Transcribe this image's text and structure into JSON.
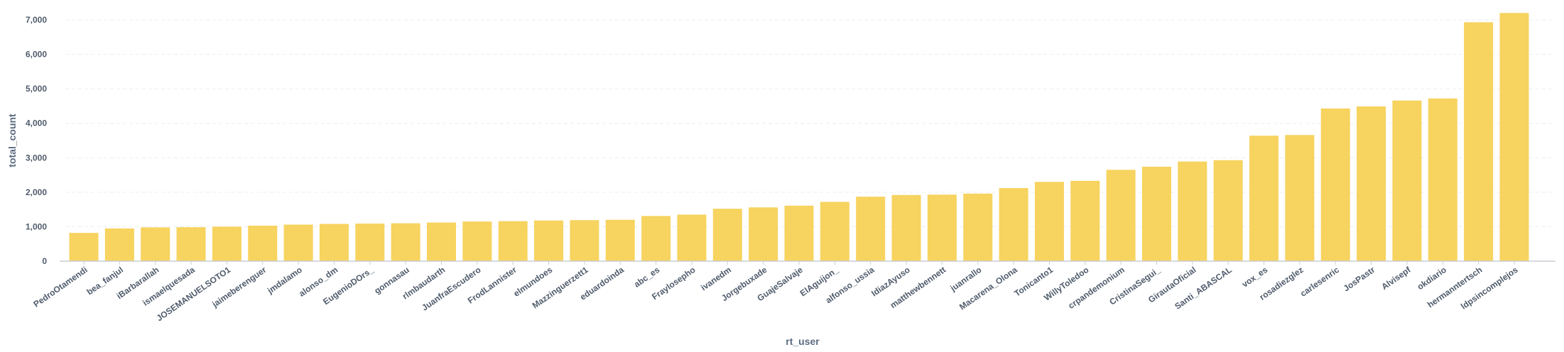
{
  "chart_data": {
    "type": "bar",
    "xlabel": "rt_user",
    "ylabel": "total_count",
    "ylim": [
      0,
      7000
    ],
    "y_ticks": [
      "0",
      "1,000",
      "2,000",
      "3,000",
      "4,000",
      "5,000",
      "6,000",
      "7,000"
    ],
    "y_tick_values": [
      0,
      1000,
      2000,
      3000,
      4000,
      5000,
      6000,
      7000
    ],
    "grid": true,
    "bar_color": "#f7d35f",
    "axis_color": "#c8ced6",
    "grid_color": "#e9edf1",
    "categories": [
      "PedroOtamendi",
      "bea_fanjul",
      "iBarbarallah",
      "ismaelquesada",
      "JOSEMANUELSOTO1",
      "jaimeberenguer",
      "jmdalamo",
      "alonso_dm",
      "EugenioDOrs_",
      "gonnasau",
      "rlmbaudarth",
      "JuanfraEscudero",
      "FrodLannister",
      "elmundoes",
      "Mazzinguerzett1",
      "eduardoinda",
      "abc_es",
      "Fraylosepho",
      "ivanedm",
      "Jorgebuxade",
      "GuajeSalvaje",
      "ElAguijon_",
      "alfonso_ussia",
      "IdiazAyuso",
      "matthewbennett",
      "juanrallo",
      "Macarena_Olona",
      "Tonicanto1",
      "WillyToledoo",
      "crpandemonium",
      "CristinaSegui_",
      "GirautaOficial",
      "Santi_ABASCAL",
      "vox_es",
      "rosadiezglez",
      "carlesenric",
      "JosPastr",
      "Alvisepf",
      "okdiario",
      "hermanntertsch",
      "ldpsincomplejos"
    ],
    "values": [
      820,
      950,
      980,
      985,
      1000,
      1030,
      1060,
      1080,
      1090,
      1100,
      1120,
      1150,
      1160,
      1180,
      1190,
      1200,
      1310,
      1350,
      1520,
      1560,
      1610,
      1720,
      1870,
      1920,
      1930,
      1960,
      2120,
      2300,
      2330,
      2650,
      2740,
      2890,
      2930,
      3640,
      3660,
      4430,
      4490,
      4660,
      4720,
      6930,
      7200
    ]
  }
}
